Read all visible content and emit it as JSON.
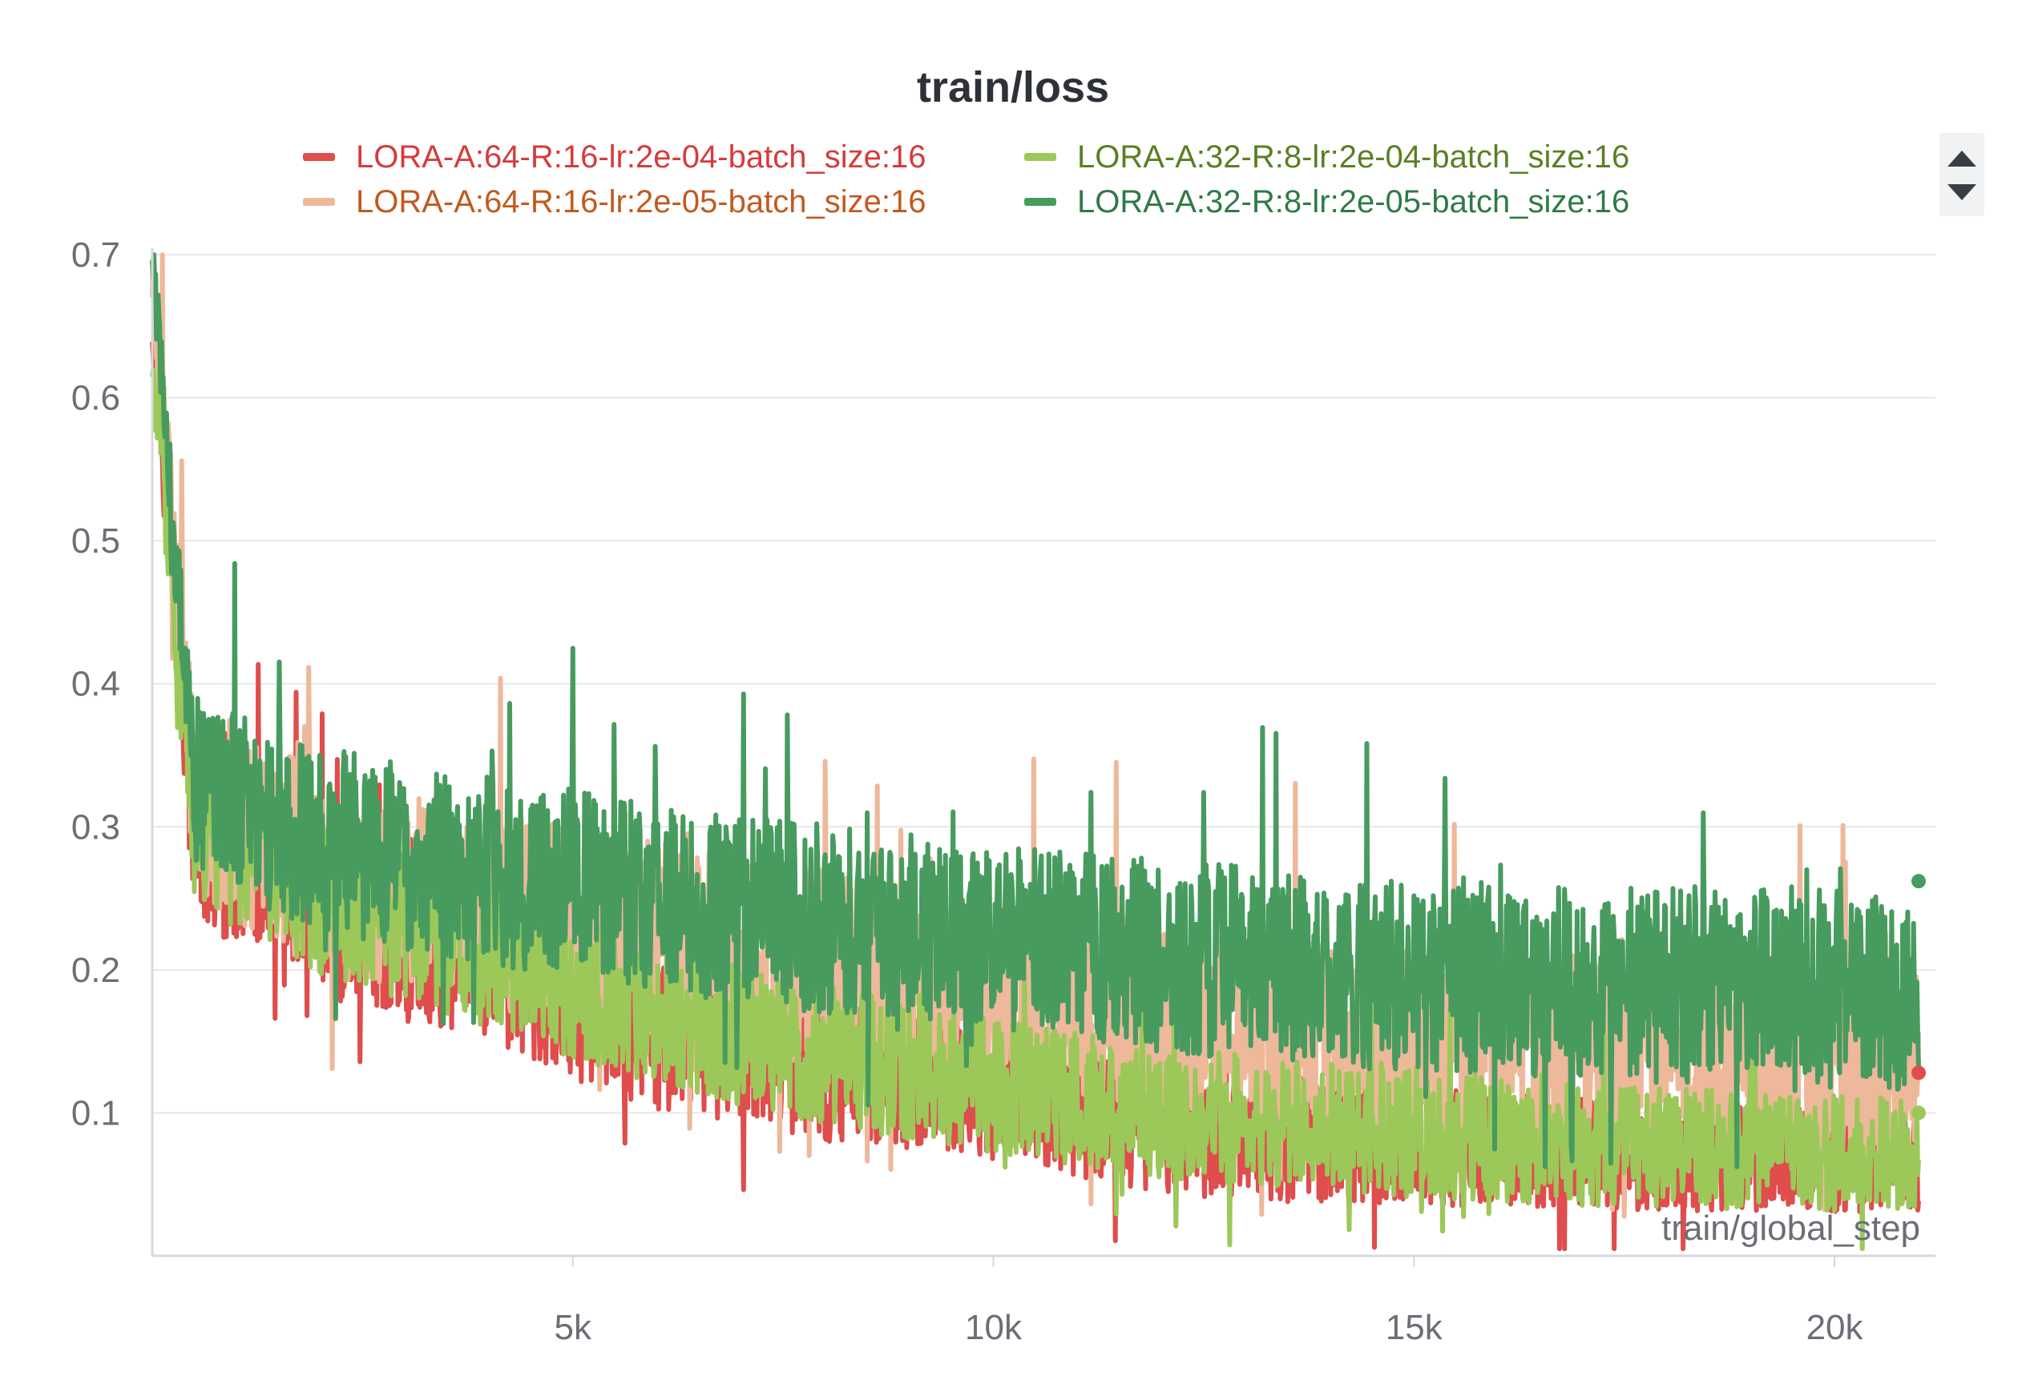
{
  "chart_data": {
    "type": "line",
    "title": "train/loss",
    "xlabel": "train/global_step",
    "ylabel": "",
    "xlim": [
      0,
      21200
    ],
    "ylim": [
      0,
      0.7
    ],
    "x_ticks": [
      {
        "value": 5000,
        "label": "5k"
      },
      {
        "value": 10000,
        "label": "10k"
      },
      {
        "value": 15000,
        "label": "15k"
      },
      {
        "value": 20000,
        "label": "20k"
      }
    ],
    "y_ticks": [
      {
        "value": 0.1,
        "label": "0.1"
      },
      {
        "value": 0.2,
        "label": "0.2"
      },
      {
        "value": 0.3,
        "label": "0.3"
      },
      {
        "value": 0.4,
        "label": "0.4"
      },
      {
        "value": 0.5,
        "label": "0.5"
      },
      {
        "value": 0.6,
        "label": "0.6"
      },
      {
        "value": 0.7,
        "label": "0.7"
      }
    ],
    "grid": true,
    "legend_position": "top",
    "series": [
      {
        "name": "LORA-A:64-R:16-lr:2e-04-batch_size:16",
        "color": "#df4d4d",
        "text_color": "#d63b3b",
        "points": [
          [
            0,
            0.65
          ],
          [
            500,
            0.29
          ],
          [
            2000,
            0.24
          ],
          [
            4000,
            0.2
          ],
          [
            6000,
            0.155
          ],
          [
            8000,
            0.13
          ],
          [
            10000,
            0.115
          ],
          [
            12000,
            0.09
          ],
          [
            14000,
            0.08
          ],
          [
            16000,
            0.075
          ],
          [
            18000,
            0.07
          ],
          [
            21000,
            0.065
          ]
        ],
        "spread": [
          0.06,
          0.035
        ],
        "last_value": 0.128
      },
      {
        "name": "LORA-A:64-R:16-lr:2e-05-batch_size:16",
        "color": "#eeb89a",
        "text_color": "#c25a1e",
        "points": [
          [
            0,
            0.68
          ],
          [
            500,
            0.32
          ],
          [
            2000,
            0.27
          ],
          [
            4000,
            0.24
          ],
          [
            6000,
            0.22
          ],
          [
            8000,
            0.2
          ],
          [
            10000,
            0.18
          ],
          [
            12000,
            0.165
          ],
          [
            14000,
            0.155
          ],
          [
            16000,
            0.145
          ],
          [
            18000,
            0.14
          ],
          [
            21000,
            0.13
          ]
        ],
        "spread": [
          0.07,
          0.07
        ]
      },
      {
        "name": "LORA-A:32-R:8-lr:2e-04-batch_size:16",
        "color": "#9cc85a",
        "text_color": "#5b7f22",
        "points": [
          [
            0,
            0.62
          ],
          [
            500,
            0.3
          ],
          [
            2000,
            0.25
          ],
          [
            4000,
            0.21
          ],
          [
            6000,
            0.17
          ],
          [
            8000,
            0.14
          ],
          [
            10000,
            0.12
          ],
          [
            12000,
            0.1
          ],
          [
            14000,
            0.09
          ],
          [
            16000,
            0.08
          ],
          [
            18000,
            0.075
          ],
          [
            21000,
            0.07
          ]
        ],
        "spread": [
          0.055,
          0.04
        ],
        "last_value": 0.1
      },
      {
        "name": "LORA-A:32-R:8-lr:2e-05-batch_size:16",
        "color": "#479b5f",
        "text_color": "#2f7a45",
        "points": [
          [
            0,
            0.7
          ],
          [
            500,
            0.33
          ],
          [
            2000,
            0.29
          ],
          [
            4000,
            0.27
          ],
          [
            6000,
            0.25
          ],
          [
            8000,
            0.235
          ],
          [
            10000,
            0.22
          ],
          [
            12000,
            0.21
          ],
          [
            14000,
            0.2
          ],
          [
            16000,
            0.195
          ],
          [
            18000,
            0.19
          ],
          [
            21000,
            0.185
          ]
        ],
        "spread": [
          0.065,
          0.07
        ],
        "last_value": 0.262
      }
    ]
  }
}
